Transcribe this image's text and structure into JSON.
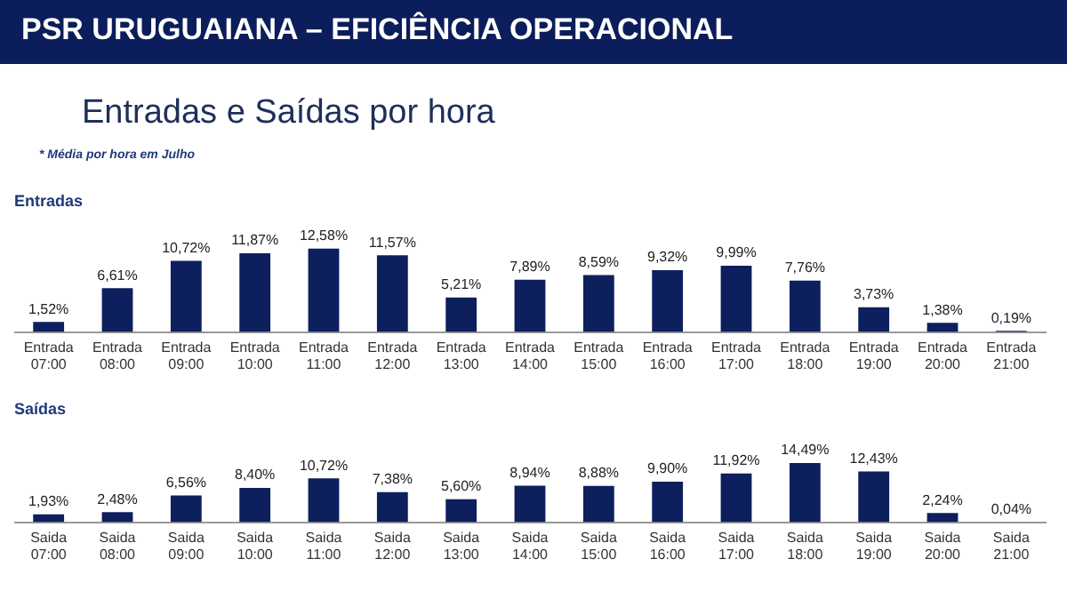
{
  "chart_data": [
    {
      "type": "other",
      "title": "PSR URUGUAIANA – EFICIÊNCIA OPERACIONAL",
      "subtitle": "Entradas e Saídas por hora",
      "annotations": [
        "* Média por hora em Julho"
      ]
    },
    {
      "type": "bar",
      "title": "Entradas",
      "categories": [
        "Entrada\n07:00",
        "Entrada\n08:00",
        "Entrada\n09:00",
        "Entrada\n10:00",
        "Entrada\n11:00",
        "Entrada\n12:00",
        "Entrada\n13:00",
        "Entrada\n14:00",
        "Entrada\n15:00",
        "Entrada\n16:00",
        "Entrada\n17:00",
        "Entrada\n18:00",
        "Entrada\n19:00",
        "Entrada\n20:00",
        "Entrada\n21:00"
      ],
      "values": [
        1.52,
        6.61,
        10.72,
        11.87,
        12.58,
        11.57,
        5.21,
        7.89,
        8.59,
        9.32,
        9.99,
        7.76,
        3.73,
        1.38,
        0.19
      ],
      "value_labels": [
        "1,52%",
        "6,61%",
        "10,72%",
        "11,87%",
        "12,58%",
        "11,57%",
        "5,21%",
        "7,89%",
        "8,59%",
        "9,32%",
        "9,99%",
        "7,76%",
        "3,73%",
        "1,38%",
        "0,19%"
      ],
      "color": "#0d1f5c",
      "tick_labels": "x",
      "grid": false,
      "legend": false
    },
    {
      "type": "bar",
      "title": "Saídas",
      "categories": [
        "Saida\n07:00",
        "Saida\n08:00",
        "Saida\n09:00",
        "Saida\n10:00",
        "Saida\n11:00",
        "Saida\n12:00",
        "Saida\n13:00",
        "Saida\n14:00",
        "Saida\n15:00",
        "Saida\n16:00",
        "Saida\n17:00",
        "Saida\n18:00",
        "Saida\n19:00",
        "Saida\n20:00",
        "Saida\n21:00"
      ],
      "values": [
        1.93,
        2.48,
        6.56,
        8.4,
        10.72,
        7.38,
        5.6,
        8.94,
        8.88,
        9.9,
        11.92,
        14.49,
        12.43,
        2.24,
        0.04
      ],
      "value_labels": [
        "1,93%",
        "2,48%",
        "6,56%",
        "8,40%",
        "10,72%",
        "7,38%",
        "5,60%",
        "8,94%",
        "8,88%",
        "9,90%",
        "11,92%",
        "14,49%",
        "12,43%",
        "2,24%",
        "0,04%"
      ],
      "color": "#0d1f5c",
      "tick_labels": "x",
      "grid": false,
      "legend": false
    }
  ]
}
